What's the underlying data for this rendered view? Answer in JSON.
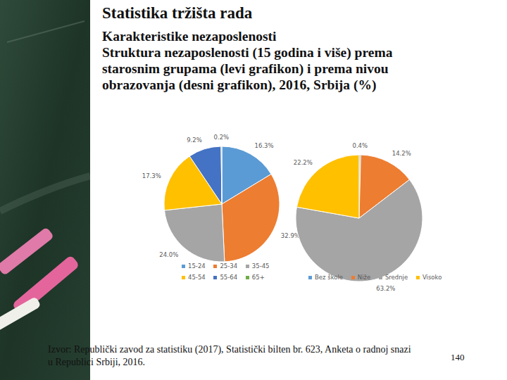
{
  "chart_data": [
    {
      "type": "pie",
      "categories": [
        "15-24",
        "25-34",
        "35-45",
        "45-54",
        "55-64",
        "65+"
      ],
      "values": [
        16.3,
        32.9,
        24.0,
        17.3,
        9.2,
        0.2
      ],
      "value_labels": [
        "16.3%",
        "32.9%",
        "24.0%",
        "17.3%",
        "9.2%",
        "0.2%"
      ],
      "colors": [
        "#5b9bd5",
        "#ed7d31",
        "#a5a5a5",
        "#ffc000",
        "#4472c4",
        "#70ad47"
      ],
      "data_labels": true,
      "legend": "bottom"
    },
    {
      "type": "pie",
      "categories": [
        "Bez škole",
        "Niže",
        "Srednje",
        "Visoko"
      ],
      "values": [
        0.4,
        14.2,
        63.2,
        22.2
      ],
      "value_labels": [
        "0.4%",
        "14.2%",
        "63.2%",
        "22.2%"
      ],
      "colors": [
        "#5b9bd5",
        "#ed7d31",
        "#a5a5a5",
        "#ffc000"
      ],
      "data_labels": true,
      "legend": "bottom"
    }
  ],
  "slide": {
    "title": "Statistika tržišta rada",
    "subtitle": [
      "Karakteristike nezaposlenosti",
      "Struktura nezaposlenosti (15 godina i više) prema",
      "starosnim grupama (levi grafikon) i prema nivou",
      "obrazovanja (desni grafikon), 2016, Srbija (%)"
    ],
    "source": [
      "Izvor: Republički zavod za statistiku (2017), Statistički bilten br. 623, Anketa o radnoj snazi",
      "u Republici Srbiji, 2016."
    ],
    "page": 140
  }
}
